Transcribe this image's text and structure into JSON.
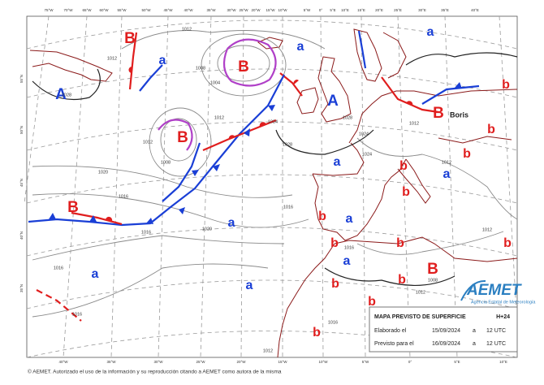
{
  "map": {
    "top_lon_labels": [
      "75°W",
      "70°W",
      "65°W",
      "60°W",
      "55°W",
      "50°W",
      "45°W",
      "40°W",
      "35°W",
      "30°W",
      "25°W",
      "20°W",
      "15°W",
      "10°W",
      "5°W",
      "0°",
      "5°E",
      "10°E",
      "15°E",
      "20°E",
      "25°E",
      "30°E",
      "35°E",
      "40°E"
    ],
    "bottom_lon_labels": [
      "40°W",
      "35°W",
      "30°W",
      "25°W",
      "20°W",
      "15°W",
      "10°W",
      "5°W",
      "0°",
      "5°E",
      "10°E"
    ],
    "lat_labels": [
      "55°N",
      "50°N",
      "45°N",
      "40°N",
      "35°N"
    ],
    "centers": [
      "B",
      "a",
      "A",
      "B",
      "a",
      "B",
      "A",
      "a",
      "B",
      "b",
      "b",
      "b",
      "a",
      "b",
      "b",
      "a",
      "B",
      "a",
      "b",
      "a",
      "b",
      "a",
      "b",
      "b",
      "a",
      "a",
      "b",
      "B",
      "b",
      "b",
      "b"
    ],
    "isobar_labels": [
      "1012",
      "1028",
      "1012",
      "1008",
      "1004",
      "1012",
      "1024",
      "1028",
      "1028",
      "1012",
      "1008",
      "1020",
      "1016",
      "1016",
      "1020",
      "1016",
      "1016",
      "1016",
      "1016",
      "1012",
      "1024",
      "1024",
      "1012",
      "1012",
      "1008",
      "1012",
      "1016",
      "1012"
    ],
    "storm_name": "Boris"
  },
  "info_box": {
    "title": "MAPA PREVISTO DE SUPERFICIE",
    "lead": "H+24",
    "rows": [
      [
        "Elaborado el",
        "15/09/2024",
        "a",
        "12 UTC"
      ],
      [
        "Previsto para el",
        "16/09/2024",
        "a",
        "12 UTC"
      ]
    ]
  },
  "logo": {
    "name": "AEMET",
    "subtitle": "Agencia Estatal de Meteorología"
  },
  "footer": "© AEMET. Autorizado el uso de la información y su reproducción citando a AEMET como autora de la misma"
}
